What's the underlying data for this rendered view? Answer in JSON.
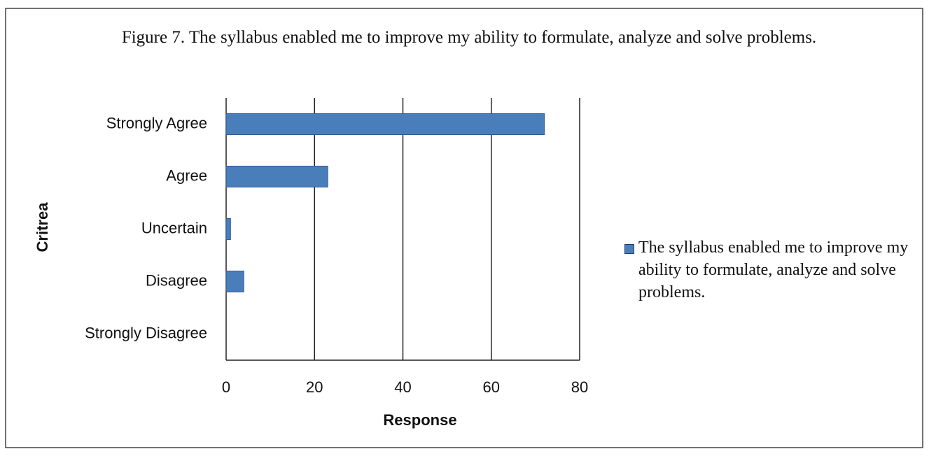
{
  "chart_data": {
    "type": "bar",
    "orientation": "horizontal",
    "title": "Figure 7. The syllabus enabled me to improve my ability to formulate, analyze and solve problems.",
    "x_label": "Response",
    "y_label": "Critrea",
    "categories": [
      "Strongly Agree",
      "Agree",
      "Uncertain",
      "Disagree",
      "Strongly Disagree"
    ],
    "series": [
      {
        "name": "The syllabus enabled me to improve my ability to formulate, analyze and solve problems.",
        "color": "#4a7ebb",
        "values": [
          72,
          23,
          1,
          4,
          0
        ]
      }
    ],
    "xlim": [
      0,
      80
    ],
    "xticks": [
      0,
      20,
      40,
      60,
      80
    ],
    "grid": true,
    "legend": "right"
  }
}
